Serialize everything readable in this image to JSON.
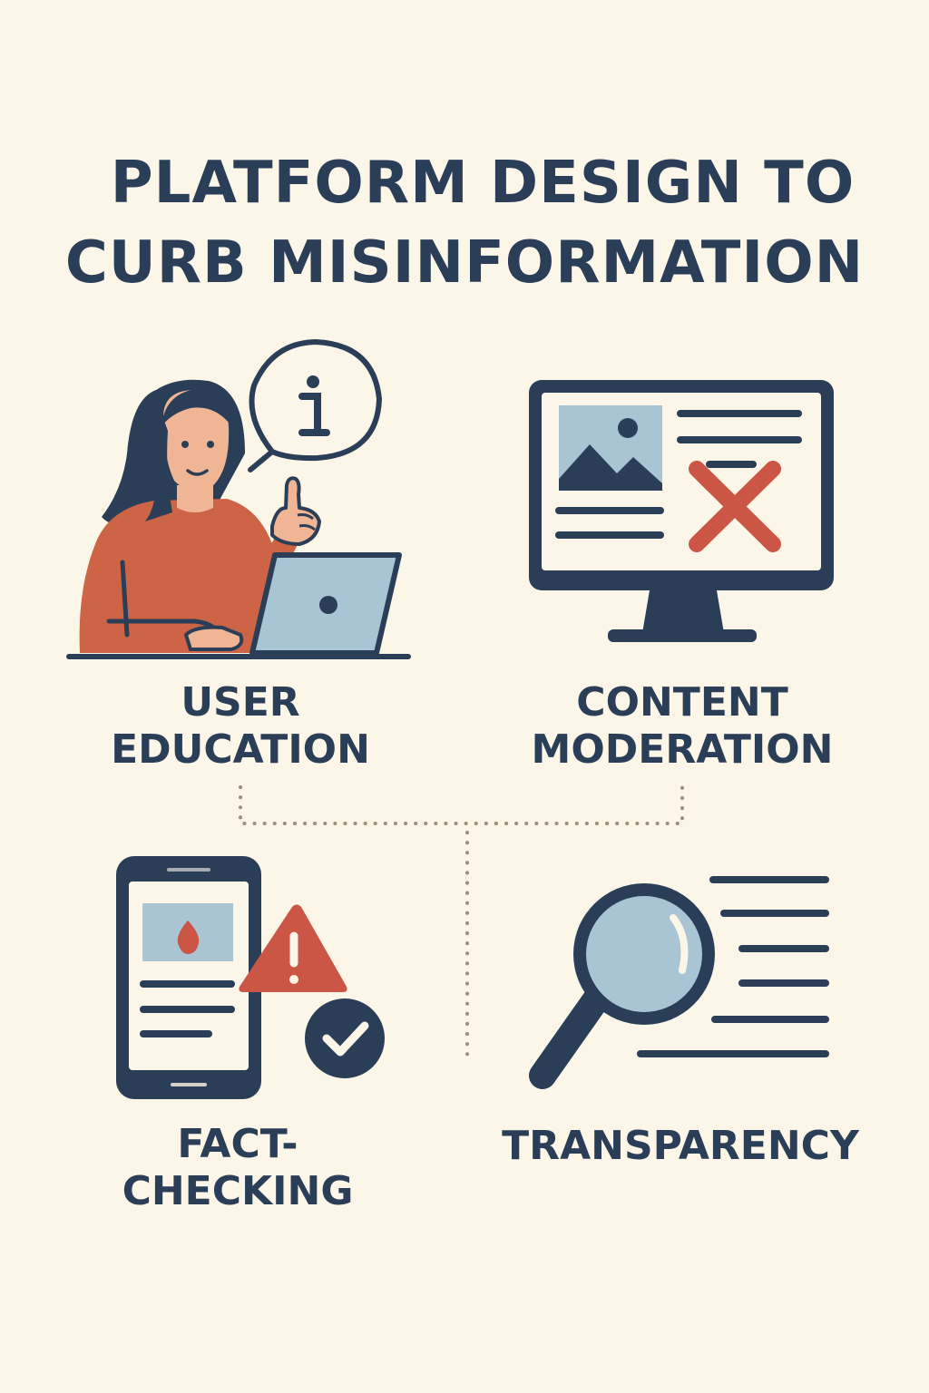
{
  "title": {
    "line1": "PLATFORM DESIGN TO",
    "line2": "CURB MISINFORMATION"
  },
  "items": [
    {
      "line1": "USER",
      "line2": "EDUCATION",
      "icon": "person-laptop-info-icon"
    },
    {
      "line1": "CONTENT",
      "line2": "MODERATION",
      "icon": "monitor-removed-content-icon"
    },
    {
      "line1": "FACT-",
      "line2": "CHECKING",
      "icon": "phone-warning-check-icon"
    },
    {
      "line1": "TRANSPARENCY",
      "line2": "",
      "icon": "magnifier-document-icon"
    }
  ],
  "colors": {
    "background": "#FCF6E8",
    "navy": "#2B3E58",
    "red": "#CC5645",
    "sweater": "#CD6445",
    "skin": "#F0B595",
    "lightblue": "#A9C4D3"
  }
}
